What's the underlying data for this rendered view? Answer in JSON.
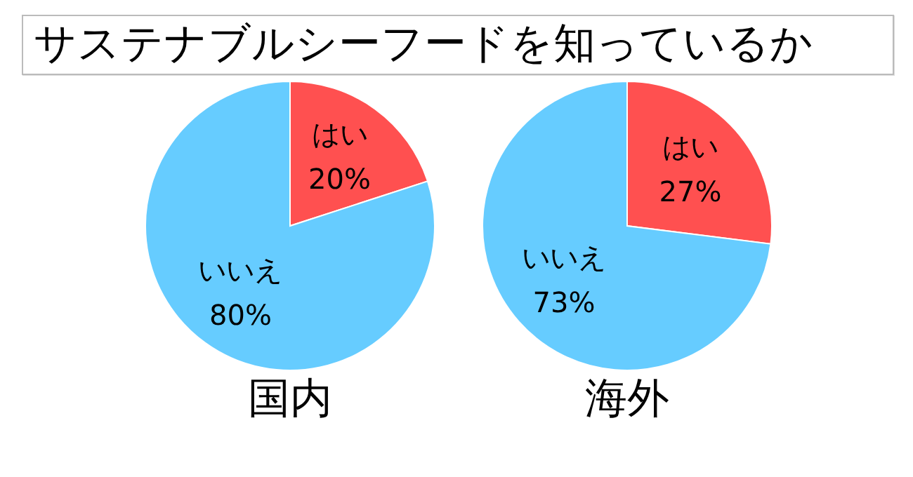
{
  "chart_data": [
    {
      "type": "other",
      "title": "サステナブルシーフードを知っているか"
    },
    {
      "type": "pie",
      "title": "国内",
      "categories": [
        "はい",
        "いいえ"
      ],
      "values": [
        20,
        80
      ],
      "colors": [
        "#ff5050",
        "#66ccff"
      ],
      "value_labels": [
        "20%",
        "80%"
      ]
    },
    {
      "type": "pie",
      "title": "海外",
      "categories": [
        "はい",
        "いいえ"
      ],
      "values": [
        27,
        73
      ],
      "colors": [
        "#ff5050",
        "#66ccff"
      ],
      "value_labels": [
        "27%",
        "73%"
      ]
    }
  ]
}
